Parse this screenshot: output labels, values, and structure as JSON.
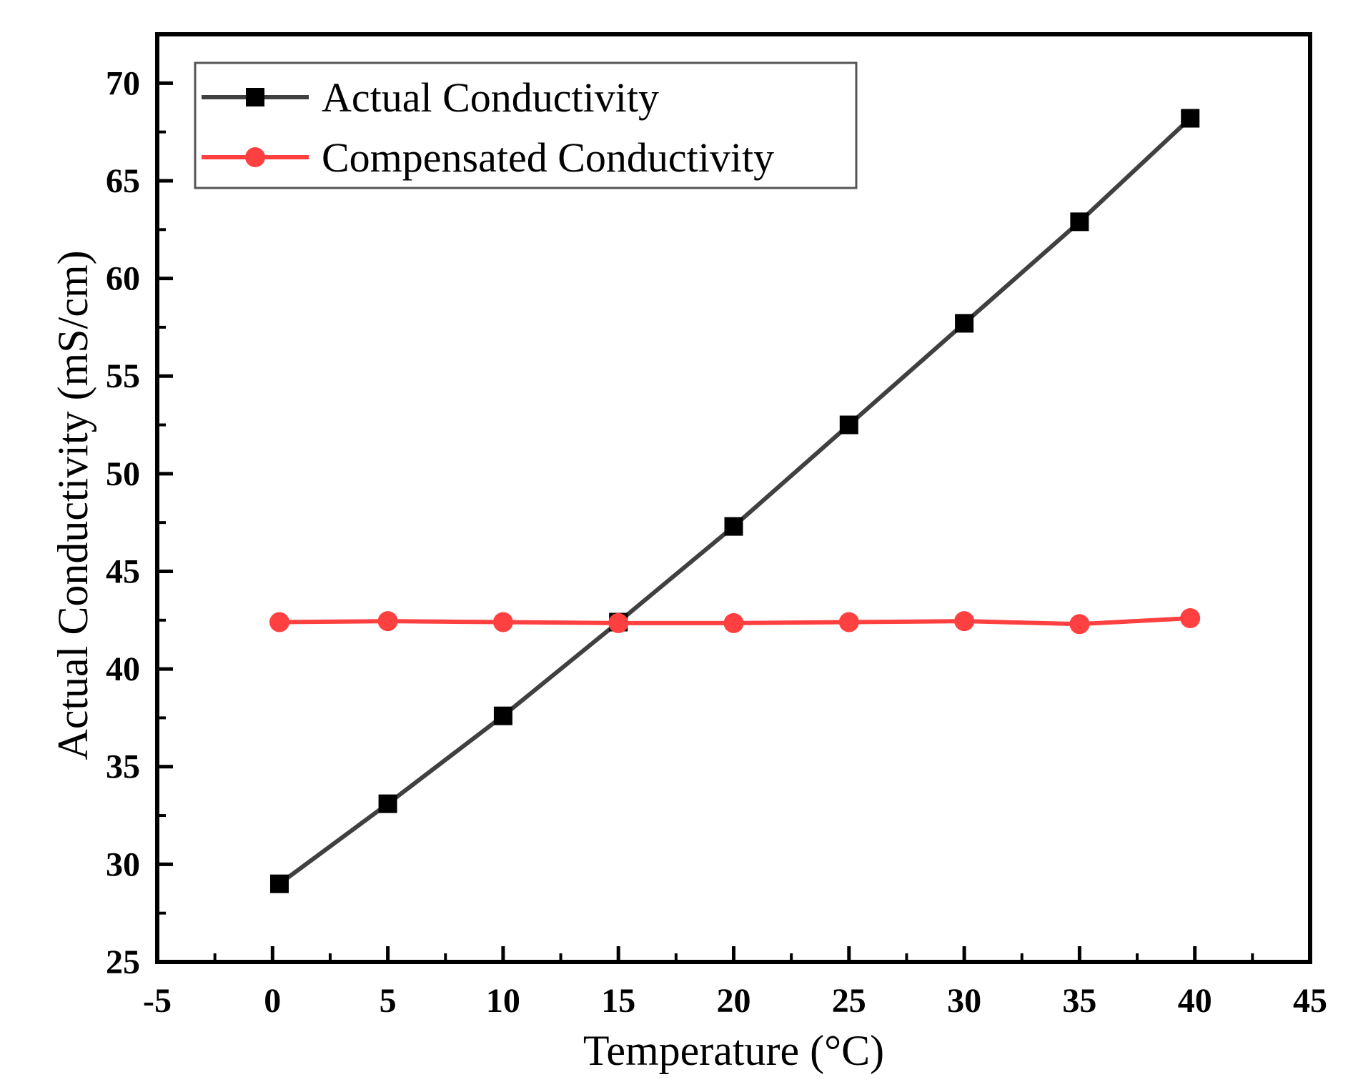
{
  "chart_data": {
    "type": "line",
    "title": "",
    "xlabel": "Temperature (°C)",
    "ylabel": "Actual Conductivity (mS/cm)",
    "xlim": [
      -5,
      45
    ],
    "ylim": [
      25,
      72.5
    ],
    "x_ticks": [
      -5,
      0,
      5,
      10,
      15,
      20,
      25,
      30,
      35,
      40,
      45
    ],
    "y_ticks": [
      25,
      30,
      35,
      40,
      45,
      50,
      55,
      60,
      65,
      70
    ],
    "grid": false,
    "legend_position": "top-left",
    "series": [
      {
        "name": "Actual Conductivity",
        "color": "#404040",
        "marker": "square",
        "marker_color": "#000000",
        "x": [
          0.3,
          5,
          10,
          15,
          20,
          25,
          30,
          35,
          39.8
        ],
        "y": [
          29.0,
          33.1,
          37.6,
          42.4,
          47.3,
          52.5,
          57.7,
          62.9,
          68.2
        ]
      },
      {
        "name": "Compensated Conductivity",
        "color": "#ff4040",
        "marker": "circle",
        "marker_color": "#ff4040",
        "x": [
          0.3,
          5,
          10,
          15,
          20,
          25,
          30,
          35,
          39.8
        ],
        "y": [
          42.4,
          42.45,
          42.4,
          42.35,
          42.35,
          42.4,
          42.45,
          42.3,
          42.6
        ]
      }
    ]
  }
}
